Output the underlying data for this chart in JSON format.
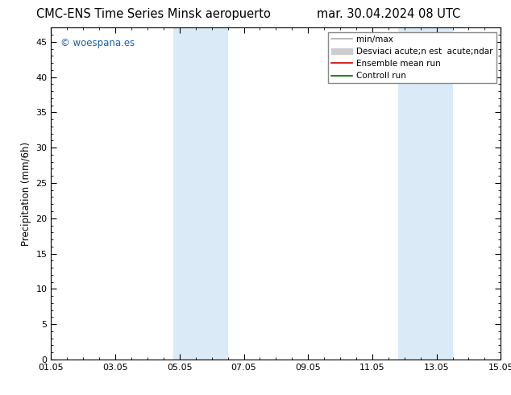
{
  "title_left": "CMC-ENS Time Series Minsk aeropuerto",
  "title_right": "mar. 30.04.2024 08 UTC",
  "ylabel": "Precipitation (mm/6h)",
  "ylim": [
    0,
    47
  ],
  "yticks": [
    0,
    5,
    10,
    15,
    20,
    25,
    30,
    35,
    40,
    45
  ],
  "xlim": [
    0,
    14
  ],
  "xtick_labels": [
    "01.05",
    "03.05",
    "05.05",
    "07.05",
    "09.05",
    "11.05",
    "13.05",
    "15.05"
  ],
  "xtick_positions": [
    0,
    2,
    4,
    6,
    8,
    10,
    12,
    14
  ],
  "shaded_regions": [
    {
      "xstart": 3.8,
      "xend": 5.5,
      "color": "#daeaf7",
      "alpha": 1.0
    },
    {
      "xstart": 10.8,
      "xend": 12.5,
      "color": "#daeaf7",
      "alpha": 1.0
    }
  ],
  "legend_items": [
    {
      "label": "min/max",
      "color": "#aaaaaa",
      "linewidth": 1.2,
      "is_patch": false
    },
    {
      "label": "Desviaci acute;n est  acute;ndar",
      "color": "#cccccc",
      "linewidth": 6,
      "is_patch": true
    },
    {
      "label": "Ensemble mean run",
      "color": "#cc0000",
      "linewidth": 1.2,
      "is_patch": false
    },
    {
      "label": "Controll run",
      "color": "#006600",
      "linewidth": 1.2,
      "is_patch": false
    }
  ],
  "watermark": "© woespana.es",
  "watermark_color": "#1a5faa",
  "background_color": "#ffffff",
  "title_fontsize": 10.5,
  "axis_fontsize": 8.5,
  "tick_fontsize": 8,
  "legend_fontsize": 7.5
}
